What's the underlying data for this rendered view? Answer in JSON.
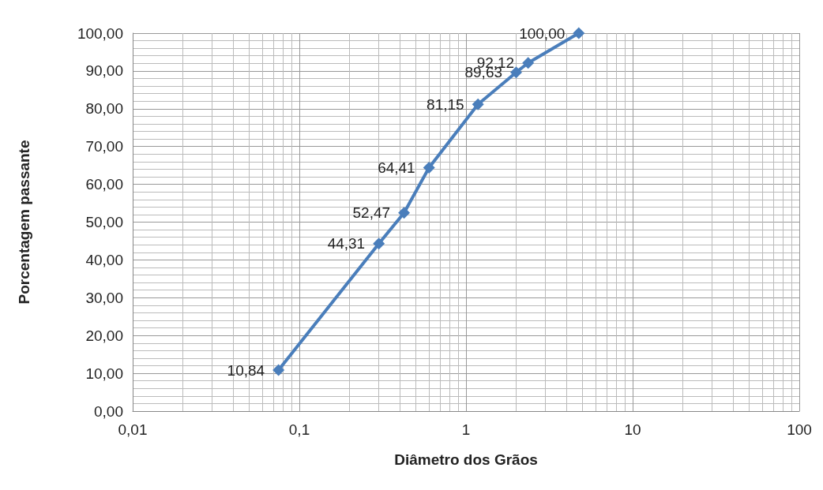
{
  "chart_data": {
    "type": "line",
    "xlabel": "Diâmetro dos Grãos",
    "ylabel": "Porcentagem passante",
    "x": [
      0.075,
      0.3,
      0.425,
      0.6,
      1.18,
      2.0,
      2.36,
      4.75
    ],
    "series": [
      {
        "color": "#4a7ebb",
        "values": [
          10.84,
          44.31,
          52.47,
          64.41,
          81.15,
          89.63,
          92.12,
          100.0
        ],
        "value_labels": [
          "10,84",
          "44,31",
          "52,47",
          "64,41",
          "81,15",
          "89,63",
          "92,12",
          "100,00"
        ]
      }
    ],
    "log": "x",
    "xlim": [
      0.01,
      100
    ],
    "xticks": [
      {
        "value": 0.01,
        "label": "0,01"
      },
      {
        "value": 0.1,
        "label": "0,1"
      },
      {
        "value": 1,
        "label": "1"
      },
      {
        "value": 10,
        "label": "10"
      },
      {
        "value": 100,
        "label": "100"
      }
    ],
    "ylim": [
      0,
      100
    ],
    "yticks": [
      {
        "value": 0,
        "label": "0,00"
      },
      {
        "value": 10,
        "label": "10,00"
      },
      {
        "value": 20,
        "label": "20,00"
      },
      {
        "value": 30,
        "label": "30,00"
      },
      {
        "value": 40,
        "label": "40,00"
      },
      {
        "value": 50,
        "label": "50,00"
      },
      {
        "value": 60,
        "label": "60,00"
      },
      {
        "value": 70,
        "label": "70,00"
      },
      {
        "value": 80,
        "label": "80,00"
      },
      {
        "value": 90,
        "label": "90,00"
      },
      {
        "value": 100,
        "label": "100,00"
      }
    ],
    "grid": true,
    "marker": "diamond",
    "line_style": "solid"
  }
}
